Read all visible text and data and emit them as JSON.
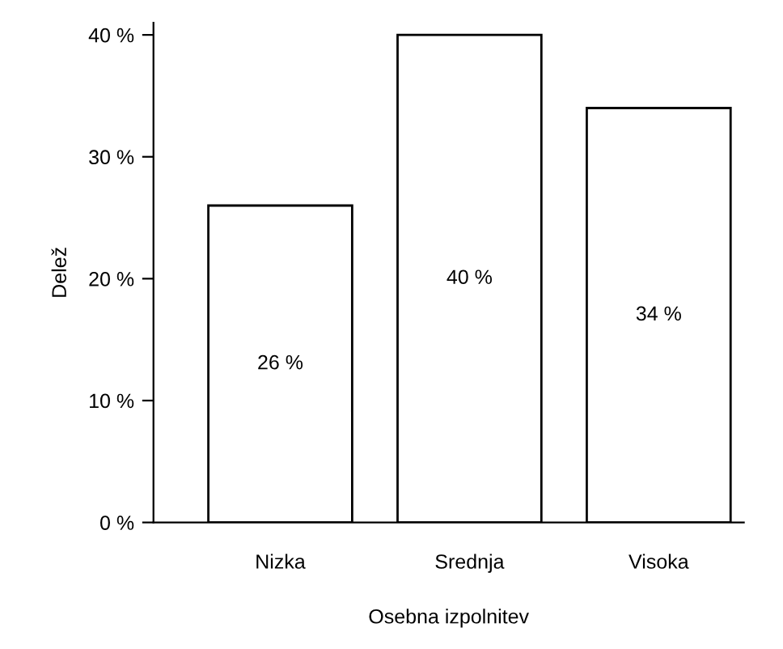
{
  "chart_data": {
    "type": "bar",
    "xlabel": "Osebna izpolnitev",
    "ylabel": "Delež",
    "categories": [
      "Nizka",
      "Srednja",
      "Visoka"
    ],
    "values": [
      26,
      40,
      34
    ],
    "color": "#ffffff",
    "value_labels": [
      "26 %",
      "40 %",
      "34 %"
    ],
    "ylim": [
      0,
      41
    ],
    "yticks": [
      {
        "value": 0,
        "label": "0 %"
      },
      {
        "value": 10,
        "label": "10 %"
      },
      {
        "value": 20,
        "label": "20 %"
      },
      {
        "value": 30,
        "label": "30 %"
      },
      {
        "value": 40,
        "label": "40 %"
      }
    ],
    "grid": false
  }
}
